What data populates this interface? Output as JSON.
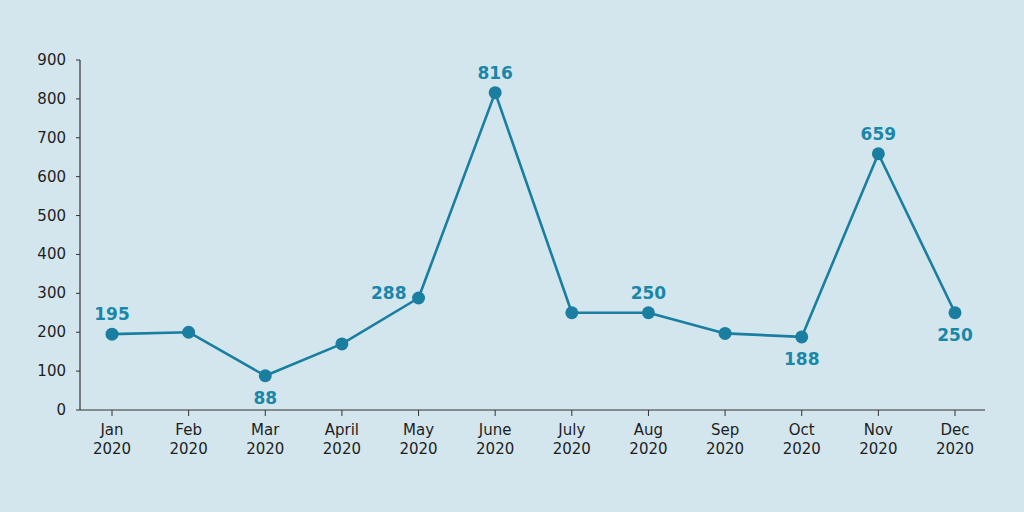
{
  "chart_data": {
    "type": "line",
    "categories": [
      "Jan 2020",
      "Feb 2020",
      "Mar 2020",
      "April 2020",
      "May 2020",
      "June 2020",
      "July 2020",
      "Aug 2020",
      "Sep 2020",
      "Oct 2020",
      "Nov 2020",
      "Dec 2020"
    ],
    "values": [
      195,
      200,
      88,
      170,
      288,
      816,
      250,
      250,
      197,
      188,
      659,
      250
    ],
    "value_labels": [
      "195",
      null,
      "88",
      null,
      "288",
      "816",
      null,
      "250",
      null,
      "188",
      "659",
      "250"
    ],
    "color": "#1a7ea0",
    "marker": "circle",
    "ylim": [
      0,
      900
    ],
    "yticks": [
      0,
      100,
      200,
      300,
      400,
      500,
      600,
      700,
      800,
      900
    ],
    "grid": false,
    "data_labels": true
  }
}
